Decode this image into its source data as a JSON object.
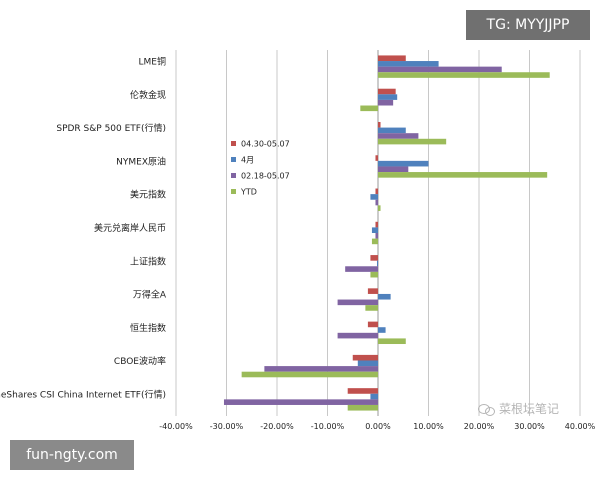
{
  "overlay": {
    "tg_badge": "TG: MYYJJPP",
    "footer_badge": "fun-ngty.com",
    "watermark": "菜根坛笔记"
  },
  "chart_data": {
    "type": "bar",
    "orientation": "horizontal",
    "categories": [
      "LME铜",
      "伦敦金现",
      "SPDR S&P 500 ETF(行情)",
      "NYMEX原油",
      "美元指数",
      "美元兑离岸人民币",
      "上证指数",
      "万得全A",
      "恒生指数",
      "CBOE波动率",
      "KraneShares CSI China Internet ETF(行情)"
    ],
    "series": [
      {
        "name": "04.30-05.07",
        "color": "#c0504d",
        "values": [
          5.5,
          3.5,
          0.5,
          -0.5,
          -0.5,
          -0.5,
          -1.5,
          -2.0,
          -2.0,
          -5.0,
          -6.0
        ]
      },
      {
        "name": "4月",
        "color": "#4f81bd",
        "values": [
          12.0,
          3.8,
          5.5,
          10.0,
          -1.5,
          -1.2,
          -0.2,
          2.5,
          1.5,
          -4.0,
          -1.5
        ]
      },
      {
        "name": "02.18-05.07",
        "color": "#8064a2",
        "values": [
          24.5,
          3.0,
          8.0,
          6.0,
          -0.5,
          -0.5,
          -6.5,
          -8.0,
          -8.0,
          -22.5,
          -30.5
        ]
      },
      {
        "name": "YTD",
        "color": "#9bbb59",
        "values": [
          34.0,
          -3.5,
          13.5,
          33.5,
          0.5,
          -1.2,
          -1.5,
          -2.5,
          5.5,
          -27.0,
          -6.0
        ]
      }
    ],
    "x_ticks": [
      "-40.00%",
      "-30.00%",
      "-20.00%",
      "-10.00%",
      "0.00%",
      "10.00%",
      "20.00%",
      "30.00%",
      "40.00%"
    ],
    "xlim": [
      -40,
      40
    ],
    "grid": true,
    "legend_position": "left-center",
    "title": "",
    "xlabel": "",
    "ylabel": ""
  }
}
